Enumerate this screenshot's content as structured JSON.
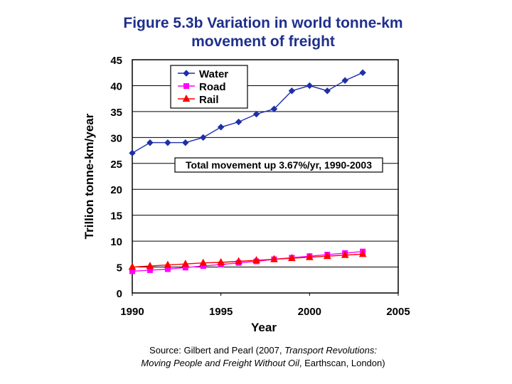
{
  "title_lines": [
    "Figure 5.3b Variation in world tonne-km",
    "movement of freight"
  ],
  "chart_data": {
    "type": "line",
    "xlabel": "Year",
    "ylabel": "Trillion tonne-km/year",
    "xlim": [
      1990,
      2005
    ],
    "ylim": [
      0,
      45
    ],
    "xticks": [
      1990,
      1995,
      2000,
      2005
    ],
    "yticks": [
      0,
      5,
      10,
      15,
      20,
      25,
      30,
      35,
      40,
      45
    ],
    "grid": "horizontal",
    "legend_position": "top-left",
    "annotation": "Total movement up 3.67%/yr, 1990-2003",
    "series": [
      {
        "name": "Water",
        "color": "#1f2fa8",
        "marker": "diamond",
        "x": [
          1990,
          1991,
          1992,
          1993,
          1994,
          1995,
          1996,
          1997,
          1998,
          1999,
          2000,
          2001,
          2002,
          2003
        ],
        "y": [
          27,
          29,
          29,
          29,
          30,
          32,
          33,
          34.5,
          35.5,
          39,
          40,
          39,
          41,
          42.5
        ]
      },
      {
        "name": "Road",
        "color": "#ff00ff",
        "marker": "square",
        "x": [
          1990,
          1991,
          1992,
          1993,
          1994,
          1995,
          1996,
          1997,
          1998,
          1999,
          2000,
          2001,
          2002,
          2003
        ],
        "y": [
          4.2,
          4.4,
          4.6,
          4.9,
          5.2,
          5.5,
          5.8,
          6.1,
          6.5,
          6.8,
          7.1,
          7.4,
          7.7,
          8.0
        ]
      },
      {
        "name": "Rail",
        "color": "#ff0000",
        "marker": "triangle",
        "x": [
          1990,
          1991,
          1992,
          1993,
          1994,
          1995,
          1996,
          1997,
          1998,
          1999,
          2000,
          2001,
          2002,
          2003
        ],
        "y": [
          5.0,
          5.2,
          5.4,
          5.6,
          5.8,
          5.9,
          6.1,
          6.3,
          6.5,
          6.7,
          6.9,
          7.1,
          7.3,
          7.5
        ]
      }
    ]
  },
  "source": {
    "line1_prefix": "Source: Gilbert and Pearl (2007, ",
    "line1_italic": "Transport Revolutions:",
    "line2_italic": "Moving People and Freight Without Oil",
    "line2_suffix": ", Earthscan, London)"
  }
}
